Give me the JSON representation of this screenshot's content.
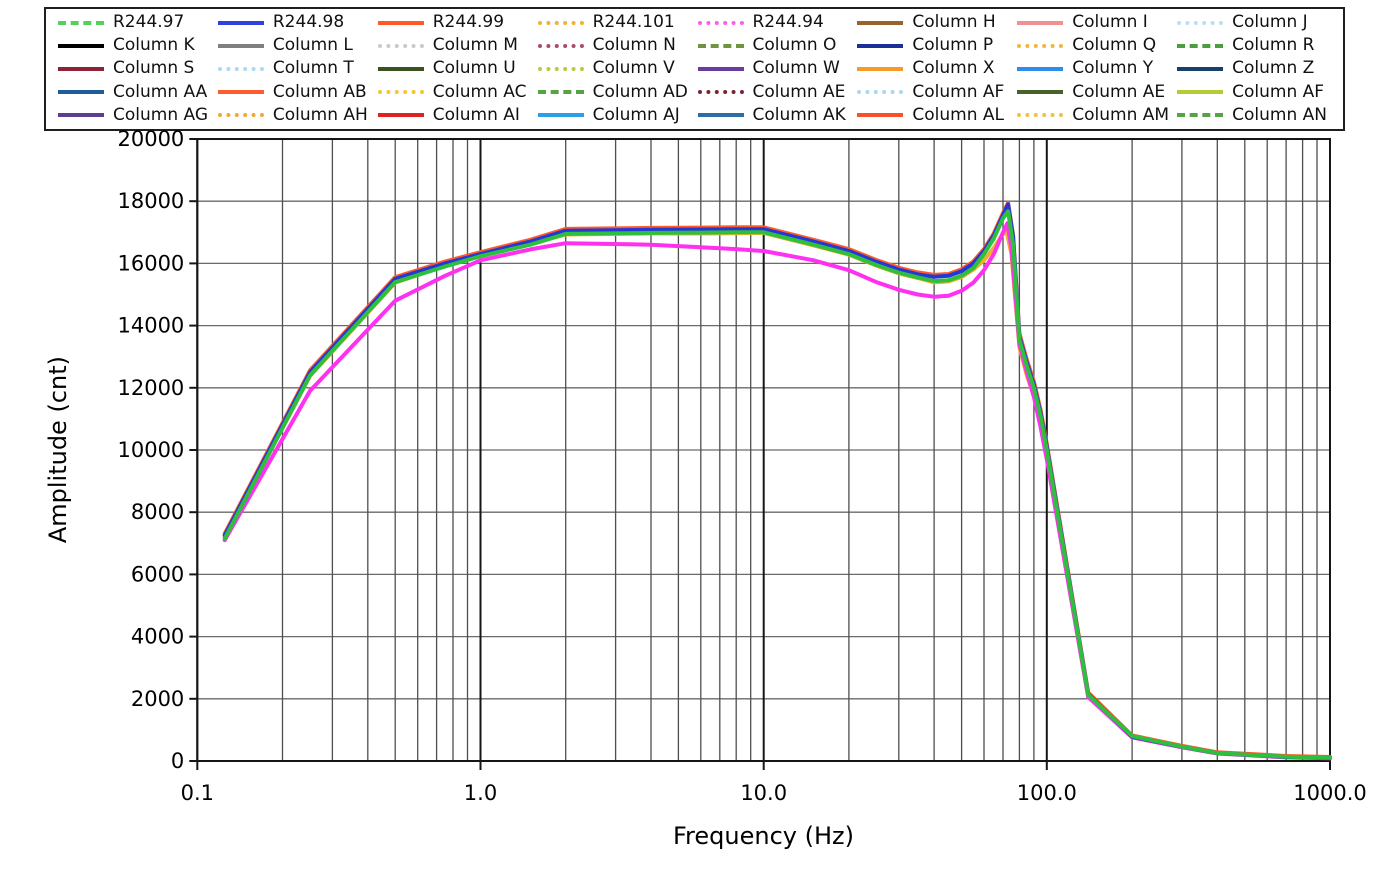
{
  "legend": {
    "entries": [
      {
        "label": "R244.97",
        "color": "#55d05f",
        "style": "dash"
      },
      {
        "label": "R244.98",
        "color": "#2d43dd",
        "style": "solid"
      },
      {
        "label": "R244.99",
        "color": "#ff5a28",
        "style": "solid"
      },
      {
        "label": "R244.101",
        "color": "#f2b42e",
        "style": "dot"
      },
      {
        "label": "R244.94",
        "color": "#ff5cf2",
        "style": "dot"
      },
      {
        "label": "Column H",
        "color": "#96622d",
        "style": "solid"
      },
      {
        "label": "Column I",
        "color": "#f09090",
        "style": "solid"
      },
      {
        "label": "Column J",
        "color": "#b9def2",
        "style": "dot"
      },
      {
        "label": "Column K",
        "color": "#000000",
        "style": "solid"
      },
      {
        "label": "Column L",
        "color": "#7f7f7f",
        "style": "solid"
      },
      {
        "label": "Column M",
        "color": "#c9c9c9",
        "style": "dot"
      },
      {
        "label": "Column N",
        "color": "#aa4a6e",
        "style": "dot"
      },
      {
        "label": "Column O",
        "color": "#6f9440",
        "style": "dash"
      },
      {
        "label": "Column P",
        "color": "#1b2f96",
        "style": "solid"
      },
      {
        "label": "Column Q",
        "color": "#f2b53c",
        "style": "dot"
      },
      {
        "label": "Column R",
        "color": "#4a9e3f",
        "style": "dash"
      },
      {
        "label": "Column S",
        "color": "#8b2236",
        "style": "solid"
      },
      {
        "label": "Column T",
        "color": "#a9d9f5",
        "style": "dot"
      },
      {
        "label": "Column U",
        "color": "#3c511f",
        "style": "solid"
      },
      {
        "label": "Column V",
        "color": "#bcc93e",
        "style": "dot"
      },
      {
        "label": "Column W",
        "color": "#6a3d9a",
        "style": "solid"
      },
      {
        "label": "Column X",
        "color": "#f59a28",
        "style": "solid"
      },
      {
        "label": "Column Y",
        "color": "#2e8de8",
        "style": "solid"
      },
      {
        "label": "Column Z",
        "color": "#17406b",
        "style": "solid"
      },
      {
        "label": "Column AA",
        "color": "#1f5c99",
        "style": "solid"
      },
      {
        "label": "Column AB",
        "color": "#ff5c30",
        "style": "solid"
      },
      {
        "label": "Column AC",
        "color": "#f5c62e",
        "style": "dot"
      },
      {
        "label": "Column AD",
        "color": "#55a344",
        "style": "dash"
      },
      {
        "label": "Column AE",
        "color": "#7d2230",
        "style": "dot"
      },
      {
        "label": "Column AF",
        "color": "#a8d8f0",
        "style": "dot"
      },
      {
        "label": "Column AE",
        "color": "#49602a",
        "style": "solid"
      },
      {
        "label": "Column AF",
        "color": "#b5cc38",
        "style": "solid"
      },
      {
        "label": "Column AG",
        "color": "#5c3d8f",
        "style": "solid"
      },
      {
        "label": "Column AH",
        "color": "#f5a832",
        "style": "dot"
      },
      {
        "label": "Column AI",
        "color": "#dd2222",
        "style": "solid"
      },
      {
        "label": "Column AJ",
        "color": "#2b9fe8",
        "style": "solid"
      },
      {
        "label": "Column AK",
        "color": "#2e6da4",
        "style": "solid"
      },
      {
        "label": "Column AL",
        "color": "#f5522a",
        "style": "solid"
      },
      {
        "label": "Column AM",
        "color": "#f0c242",
        "style": "dot"
      },
      {
        "label": "Column AN",
        "color": "#55a344",
        "style": "dash"
      }
    ]
  },
  "chart_data": {
    "type": "line",
    "title": "",
    "xlabel": "Frequency (Hz)",
    "ylabel": "Amplitude (cnt)",
    "x_scale": "log",
    "xlim": [
      0.1,
      1000
    ],
    "ylim": [
      0,
      20000
    ],
    "y_tick_step": 2000,
    "x_ticks": [
      0.1,
      1,
      10,
      100,
      1000
    ],
    "x_tick_labels": [
      "0.1",
      "1.0",
      "10.0",
      "100.0",
      "1000.0"
    ],
    "y_tick_labels": [
      "0",
      "2000",
      "4000",
      "6000",
      "8000",
      "10000",
      "12000",
      "14000",
      "16000",
      "18000",
      "20000"
    ],
    "grid": "on",
    "legend_position": "top",
    "draw_order": [
      3,
      2,
      4,
      1,
      0
    ],
    "series": [
      {
        "name": "R244.97",
        "color": "#2fbf3f",
        "points": [
          [
            0.125,
            7150
          ],
          [
            0.25,
            12400
          ],
          [
            0.5,
            15400
          ],
          [
            0.75,
            15900
          ],
          [
            1,
            16230
          ],
          [
            1.5,
            16600
          ],
          [
            2,
            16950
          ],
          [
            4,
            16980
          ],
          [
            6,
            16990
          ],
          [
            8,
            17000
          ],
          [
            10,
            17000
          ],
          [
            15,
            16600
          ],
          [
            20,
            16300
          ],
          [
            25,
            15950
          ],
          [
            30,
            15700
          ],
          [
            35,
            15550
          ],
          [
            40,
            15430
          ],
          [
            45,
            15460
          ],
          [
            50,
            15600
          ],
          [
            55,
            15850
          ],
          [
            60,
            16300
          ],
          [
            65,
            16800
          ],
          [
            70,
            17450
          ],
          [
            73,
            17680
          ],
          [
            76,
            16600
          ],
          [
            80,
            13550
          ],
          [
            85,
            12700
          ],
          [
            90,
            12000
          ],
          [
            95,
            11100
          ],
          [
            100,
            10000
          ],
          [
            140,
            2130
          ],
          [
            200,
            800
          ],
          [
            300,
            460
          ],
          [
            400,
            255
          ],
          [
            700,
            135
          ],
          [
            1000,
            105
          ]
        ]
      },
      {
        "name": "R244.98",
        "color": "#2438d8",
        "points": [
          [
            0.125,
            7250
          ],
          [
            0.25,
            12500
          ],
          [
            0.5,
            15500
          ],
          [
            0.75,
            16000
          ],
          [
            1,
            16300
          ],
          [
            1.5,
            16700
          ],
          [
            2,
            17050
          ],
          [
            4,
            17080
          ],
          [
            6,
            17090
          ],
          [
            8,
            17100
          ],
          [
            10,
            17100
          ],
          [
            15,
            16700
          ],
          [
            20,
            16400
          ],
          [
            25,
            16050
          ],
          [
            30,
            15800
          ],
          [
            35,
            15650
          ],
          [
            40,
            15570
          ],
          [
            45,
            15600
          ],
          [
            50,
            15750
          ],
          [
            55,
            16000
          ],
          [
            60,
            16400
          ],
          [
            65,
            16900
          ],
          [
            70,
            17550
          ],
          [
            73,
            17900
          ],
          [
            76,
            16850
          ],
          [
            80,
            13650
          ],
          [
            85,
            12800
          ],
          [
            90,
            12100
          ],
          [
            95,
            11200
          ],
          [
            100,
            10100
          ],
          [
            140,
            2150
          ],
          [
            200,
            780
          ],
          [
            300,
            455
          ],
          [
            400,
            250
          ],
          [
            700,
            130
          ],
          [
            1000,
            100
          ]
        ]
      },
      {
        "name": "R244.99",
        "color": "#ff5a28",
        "points": [
          [
            0.125,
            7310
          ],
          [
            0.25,
            12560
          ],
          [
            0.5,
            15560
          ],
          [
            0.75,
            16060
          ],
          [
            1,
            16360
          ],
          [
            1.5,
            16760
          ],
          [
            2,
            17110
          ],
          [
            4,
            17140
          ],
          [
            6,
            17150
          ],
          [
            8,
            17160
          ],
          [
            10,
            17160
          ],
          [
            15,
            16760
          ],
          [
            20,
            16460
          ],
          [
            25,
            16110
          ],
          [
            30,
            15860
          ],
          [
            35,
            15710
          ],
          [
            40,
            15630
          ],
          [
            45,
            15660
          ],
          [
            50,
            15810
          ],
          [
            55,
            16060
          ],
          [
            60,
            16460
          ],
          [
            65,
            16960
          ],
          [
            70,
            17620
          ],
          [
            73,
            17950
          ],
          [
            76,
            16900
          ],
          [
            80,
            13750
          ],
          [
            85,
            12900
          ],
          [
            90,
            12200
          ],
          [
            95,
            11300
          ],
          [
            100,
            10200
          ],
          [
            140,
            2200
          ],
          [
            200,
            820
          ],
          [
            300,
            490
          ],
          [
            400,
            280
          ],
          [
            700,
            160
          ],
          [
            1000,
            130
          ]
        ]
      },
      {
        "name": "R244.101",
        "color": "#f2af2b",
        "points": [
          [
            0.125,
            7180
          ],
          [
            0.25,
            12380
          ],
          [
            0.5,
            15380
          ],
          [
            0.75,
            15930
          ],
          [
            1,
            16230
          ],
          [
            1.5,
            16630
          ],
          [
            2,
            16930
          ],
          [
            4,
            16960
          ],
          [
            6,
            16960
          ],
          [
            8,
            16970
          ],
          [
            10,
            16980
          ],
          [
            15,
            16580
          ],
          [
            20,
            16280
          ],
          [
            25,
            15930
          ],
          [
            30,
            15680
          ],
          [
            35,
            15530
          ],
          [
            40,
            15390
          ],
          [
            45,
            15420
          ],
          [
            50,
            15560
          ],
          [
            55,
            15800
          ],
          [
            60,
            16100
          ],
          [
            65,
            16500
          ],
          [
            70,
            16950
          ],
          [
            72,
            17050
          ],
          [
            75,
            16300
          ],
          [
            80,
            13300
          ],
          [
            85,
            12400
          ],
          [
            90,
            11750
          ],
          [
            95,
            10850
          ],
          [
            100,
            9800
          ],
          [
            140,
            2100
          ],
          [
            200,
            790
          ],
          [
            300,
            470
          ],
          [
            400,
            260
          ],
          [
            700,
            140
          ],
          [
            1000,
            110
          ]
        ]
      },
      {
        "name": "R244.94",
        "color": "#ff30f0",
        "points": [
          [
            0.125,
            7100
          ],
          [
            0.25,
            11900
          ],
          [
            0.5,
            14800
          ],
          [
            0.75,
            15600
          ],
          [
            1,
            16100
          ],
          [
            1.5,
            16450
          ],
          [
            2,
            16650
          ],
          [
            4,
            16600
          ],
          [
            6,
            16520
          ],
          [
            8,
            16460
          ],
          [
            10,
            16400
          ],
          [
            15,
            16100
          ],
          [
            20,
            15780
          ],
          [
            25,
            15400
          ],
          [
            30,
            15150
          ],
          [
            35,
            15000
          ],
          [
            40,
            14930
          ],
          [
            45,
            14960
          ],
          [
            50,
            15120
          ],
          [
            55,
            15380
          ],
          [
            60,
            15780
          ],
          [
            65,
            16300
          ],
          [
            70,
            17000
          ],
          [
            72.5,
            17290
          ],
          [
            75,
            16500
          ],
          [
            80,
            13400
          ],
          [
            85,
            12500
          ],
          [
            90,
            11700
          ],
          [
            95,
            10750
          ],
          [
            100,
            9700
          ],
          [
            140,
            2050
          ],
          [
            200,
            760
          ],
          [
            300,
            440
          ],
          [
            400,
            240
          ],
          [
            700,
            115
          ],
          [
            1000,
            90
          ]
        ]
      }
    ]
  }
}
